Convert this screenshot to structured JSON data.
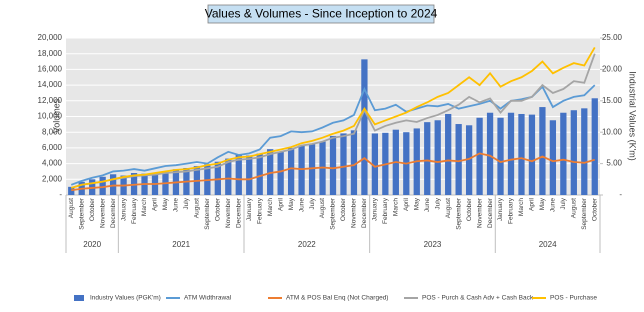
{
  "chart_data": {
    "type": "bar-line",
    "title": "Values & Volumes - Since Inception to 2024",
    "y_label": "Volumes",
    "y2_label": "Industrial Values (K'm)",
    "categories": [
      "August",
      "September",
      "October",
      "November",
      "December",
      "January",
      "February",
      "March",
      "April",
      "May",
      "June",
      "July",
      "August",
      "September",
      "October",
      "November",
      "December",
      "January",
      "February",
      "March",
      "April",
      "May",
      "June",
      "July",
      "August",
      "September",
      "October",
      "November",
      "December",
      "January",
      "February",
      "March",
      "April",
      "May",
      "June",
      "July",
      "August",
      "September",
      "October",
      "November",
      "December",
      "January",
      "February",
      "March",
      "April",
      "May",
      "June",
      "July",
      "August",
      "September",
      "October"
    ],
    "groups": [
      {
        "label": "2020",
        "count": 5
      },
      {
        "label": "2021",
        "count": 12
      },
      {
        "label": "2022",
        "count": 12
      },
      {
        "label": "2023",
        "count": 12
      },
      {
        "label": "2024",
        "count": 10
      }
    ],
    "ylim": [
      0,
      20000
    ],
    "yticks": [
      {
        "value": 0,
        "label": "-"
      },
      {
        "value": 2000,
        "label": "2,000"
      },
      {
        "value": 4000,
        "label": "4,000"
      },
      {
        "value": 6000,
        "label": "6,000"
      },
      {
        "value": 8000,
        "label": "8,000"
      },
      {
        "value": 10000,
        "label": "10,000"
      },
      {
        "value": 12000,
        "label": "12,000"
      },
      {
        "value": 14000,
        "label": "14,000"
      },
      {
        "value": 16000,
        "label": "16,000"
      },
      {
        "value": 18000,
        "label": "18,000"
      },
      {
        "value": 20000,
        "label": "20,000"
      }
    ],
    "y2lim": [
      0,
      25
    ],
    "y2ticks": [
      {
        "value": 0,
        "label": "-"
      },
      {
        "value": 5,
        "label": "5.00"
      },
      {
        "value": 10,
        "label": "10.00"
      },
      {
        "value": 15,
        "label": "15.00"
      },
      {
        "value": 20,
        "label": "20.00"
      },
      {
        "value": 25,
        "label": "25.00"
      }
    ],
    "grid": true,
    "series": [
      {
        "name": "Industry Values (PGK'm)",
        "kind": "bar",
        "axis": "y2",
        "color": "#4472c4",
        "values": [
          1.3,
          2.1,
          2.5,
          2.9,
          3.3,
          3.1,
          3.5,
          3.4,
          3.3,
          3.8,
          4.1,
          4.3,
          4.6,
          4.9,
          5.3,
          5.8,
          6.5,
          6.3,
          6.6,
          7.3,
          6.9,
          7.5,
          7.9,
          8.1,
          8.5,
          9.4,
          9.8,
          10.3,
          21.6,
          9.8,
          9.9,
          10.4,
          10.0,
          10.6,
          11.6,
          11.9,
          12.9,
          11.3,
          11.1,
          12.3,
          13.1,
          12.3,
          13.1,
          12.9,
          12.8,
          14.0,
          11.9,
          13.1,
          13.5,
          13.8,
          15.4
        ]
      },
      {
        "name": "ATM Widthrawal",
        "kind": "line",
        "color": "#5b9bd5",
        "values": [
          1300,
          1800,
          2200,
          2500,
          3000,
          3100,
          3300,
          3100,
          3400,
          3700,
          3800,
          4000,
          4200,
          4000,
          4800,
          5500,
          5100,
          5300,
          5800,
          7300,
          7500,
          8100,
          8000,
          8100,
          8600,
          9200,
          9500,
          10200,
          13500,
          10800,
          11000,
          11500,
          10600,
          11000,
          11400,
          11300,
          11600,
          11000,
          11300,
          11600,
          12000,
          11000,
          12000,
          12200,
          12500,
          13800,
          11200,
          12000,
          12500,
          12700,
          14000
        ]
      },
      {
        "name": "ATM & POS Bal Enq (Not Charged)",
        "kind": "line",
        "color": "#ed7d31",
        "values": [
          600,
          800,
          900,
          1000,
          1200,
          1200,
          1300,
          1400,
          1400,
          1500,
          1600,
          1700,
          1800,
          1900,
          2000,
          2100,
          2000,
          2000,
          2400,
          2800,
          3000,
          3400,
          3300,
          3400,
          3500,
          3400,
          3600,
          3800,
          4700,
          3600,
          3900,
          4200,
          4000,
          4300,
          4400,
          4200,
          4400,
          4300,
          4600,
          5300,
          5000,
          4200,
          4500,
          4700,
          4300,
          4900,
          4300,
          4500,
          4200,
          4100,
          4500
        ]
      },
      {
        "name": "POS - Purch & Cash Adv + Cash Back",
        "kind": "line",
        "color": "#a5a5a5",
        "values": [
          900,
          1300,
          1500,
          1700,
          2000,
          2200,
          2400,
          2500,
          2600,
          2800,
          2900,
          3000,
          3200,
          3400,
          3600,
          4200,
          4500,
          4600,
          4800,
          5200,
          5500,
          5800,
          6300,
          6500,
          6800,
          7300,
          7500,
          7800,
          10800,
          8200,
          8800,
          9200,
          9500,
          9300,
          9800,
          10200,
          10800,
          11500,
          12500,
          11800,
          12300,
          10500,
          12000,
          12000,
          12500,
          14000,
          13000,
          13500,
          14500,
          14300,
          18000
        ]
      },
      {
        "name": "POS - Purchase",
        "kind": "line",
        "color": "#ffc000",
        "values": [
          900,
          1300,
          1500,
          1700,
          2000,
          2300,
          2500,
          2600,
          2800,
          3000,
          3200,
          3300,
          3500,
          3800,
          4000,
          4500,
          4800,
          4900,
          5200,
          5500,
          5800,
          6100,
          6600,
          6900,
          7300,
          7800,
          8200,
          8800,
          11000,
          9000,
          9500,
          10000,
          10500,
          11200,
          11800,
          12500,
          13000,
          14000,
          15000,
          14000,
          15500,
          13800,
          14500,
          15000,
          15800,
          17000,
          15500,
          16200,
          16800,
          16500,
          18800
        ]
      }
    ]
  }
}
